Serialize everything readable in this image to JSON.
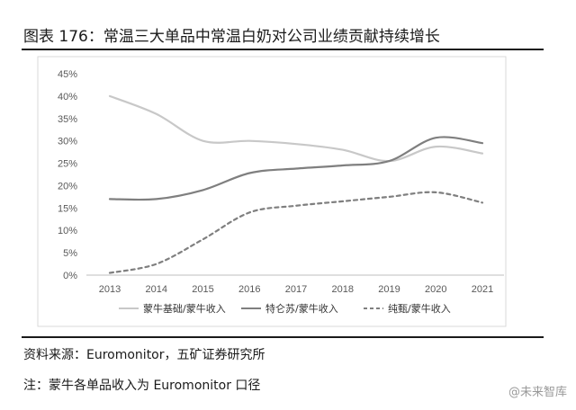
{
  "figure": {
    "title": "图表 176：常温三大单品中常温白奶对公司业绩贡献持续增长",
    "source": "资料来源：Euromonitor，五矿证券研究所",
    "note": "注：蒙牛各单品收入为 Euromonitor 口径",
    "watermark": "@未来智库"
  },
  "chart_data": {
    "type": "line",
    "title": "",
    "xlabel": "",
    "ylabel": "",
    "categories": [
      "2013",
      "2014",
      "2015",
      "2016",
      "2017",
      "2018",
      "2019",
      "2020",
      "2021"
    ],
    "ylim": [
      0,
      45
    ],
    "yticks": [
      "0%",
      "5%",
      "10%",
      "15%",
      "20%",
      "25%",
      "30%",
      "35%",
      "40%",
      "45%"
    ],
    "grid": false,
    "legend_position": "bottom",
    "series": [
      {
        "name": "蒙牛基础/蒙牛收入",
        "values": [
          40.0,
          36.0,
          30.0,
          30.0,
          29.3,
          28.0,
          25.5,
          28.7,
          27.2
        ],
        "color": "#c8c8c8",
        "style": "solid"
      },
      {
        "name": "特仑苏/蒙牛收入",
        "values": [
          17.0,
          17.0,
          19.0,
          22.8,
          23.8,
          24.5,
          25.5,
          30.7,
          29.5
        ],
        "color": "#7f7f7f",
        "style": "solid"
      },
      {
        "name": "纯甄/蒙牛收入",
        "values": [
          0.5,
          2.5,
          8.0,
          14.0,
          15.5,
          16.5,
          17.5,
          18.5,
          16.2
        ],
        "color": "#7f7f7f",
        "style": "dashed"
      }
    ]
  }
}
